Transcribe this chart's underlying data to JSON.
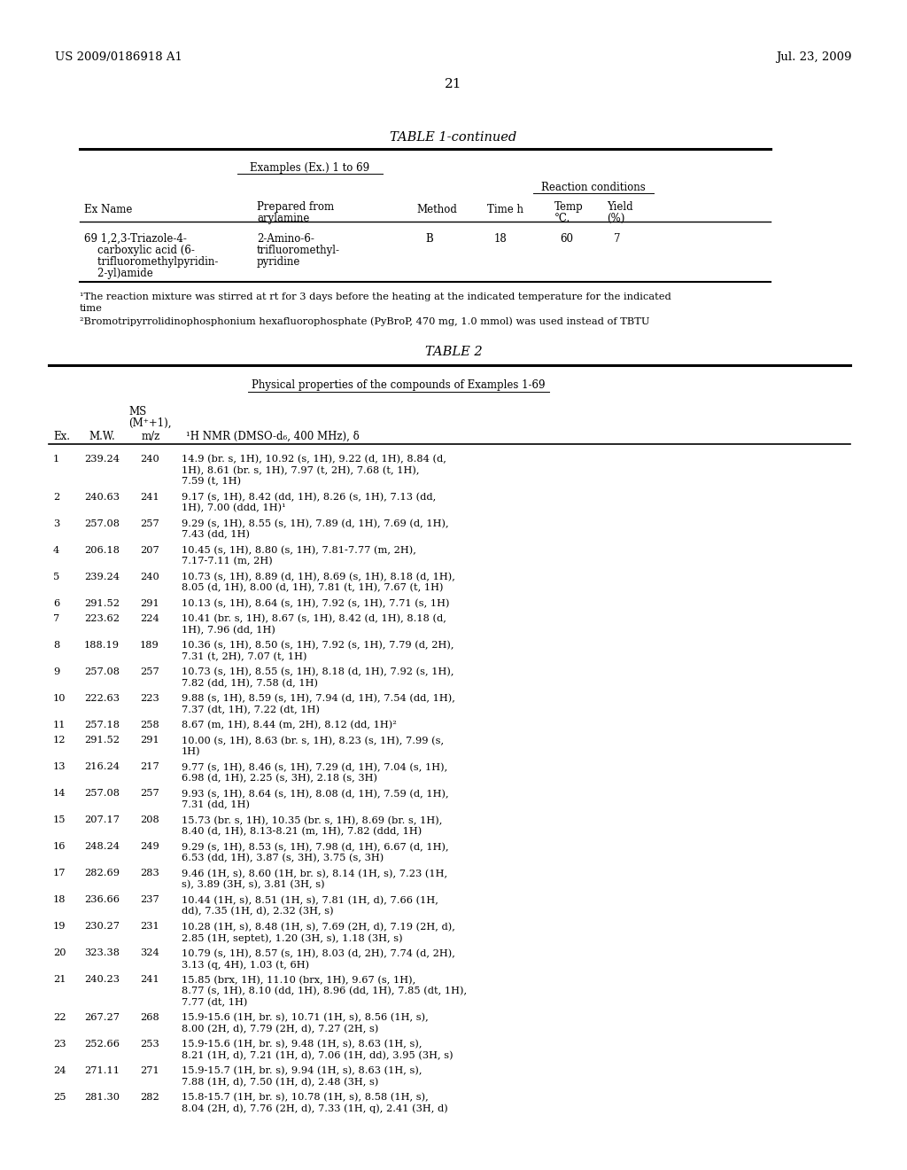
{
  "background_color": "#ffffff",
  "page_number": "21",
  "header_left": "US 2009/0186918 A1",
  "header_right": "Jul. 23, 2009",
  "table1_title": "TABLE 1-continued",
  "table1_subtitle": "Examples (Ex.) 1 to 69",
  "table1_subtitle2": "Reaction conditions",
  "footnote1": "¹The reaction mixture was stirred at rt for 3 days before the heating at the indicated temperature for the indicated",
  "footnote1b": "time",
  "footnote2": "²Bromotripyrrolidinophosphonium hexafluorophosphate (PyBroP, 470 mg, 1.0 mmol) was used instead of TBTU",
  "table2_title": "TABLE 2",
  "table2_subtitle": "Physical properties of the compounds of Examples 1-69",
  "table2_data": [
    [
      "1",
      "239.24",
      "240",
      "14.9 (br. s, 1H), 10.92 (s, 1H), 9.22 (d, 1H), 8.84 (d,\n1H), 8.61 (br. s, 1H), 7.97 (t, 2H), 7.68 (t, 1H),\n7.59 (t, 1H)"
    ],
    [
      "2",
      "240.63",
      "241",
      "9.17 (s, 1H), 8.42 (dd, 1H), 8.26 (s, 1H), 7.13 (dd,\n1H), 7.00 (ddd, 1H)¹"
    ],
    [
      "3",
      "257.08",
      "257",
      "9.29 (s, 1H), 8.55 (s, 1H), 7.89 (d, 1H), 7.69 (d, 1H),\n7.43 (dd, 1H)"
    ],
    [
      "4",
      "206.18",
      "207",
      "10.45 (s, 1H), 8.80 (s, 1H), 7.81-7.77 (m, 2H),\n7.17-7.11 (m, 2H)"
    ],
    [
      "5",
      "239.24",
      "240",
      "10.73 (s, 1H), 8.89 (d, 1H), 8.69 (s, 1H), 8.18 (d, 1H),\n8.05 (d, 1H), 8.00 (d, 1H), 7.81 (t, 1H), 7.67 (t, 1H)"
    ],
    [
      "6",
      "291.52",
      "291",
      "10.13 (s, 1H), 8.64 (s, 1H), 7.92 (s, 1H), 7.71 (s, 1H)"
    ],
    [
      "7",
      "223.62",
      "224",
      "10.41 (br. s, 1H), 8.67 (s, 1H), 8.42 (d, 1H), 8.18 (d,\n1H), 7.96 (dd, 1H)"
    ],
    [
      "8",
      "188.19",
      "189",
      "10.36 (s, 1H), 8.50 (s, 1H), 7.92 (s, 1H), 7.79 (d, 2H),\n7.31 (t, 2H), 7.07 (t, 1H)"
    ],
    [
      "9",
      "257.08",
      "257",
      "10.73 (s, 1H), 8.55 (s, 1H), 8.18 (d, 1H), 7.92 (s, 1H),\n7.82 (dd, 1H), 7.58 (d, 1H)"
    ],
    [
      "10",
      "222.63",
      "223",
      "9.88 (s, 1H), 8.59 (s, 1H), 7.94 (d, 1H), 7.54 (dd, 1H),\n7.37 (dt, 1H), 7.22 (dt, 1H)"
    ],
    [
      "11",
      "257.18",
      "258",
      "8.67 (m, 1H), 8.44 (m, 2H), 8.12 (dd, 1H)²"
    ],
    [
      "12",
      "291.52",
      "291",
      "10.00 (s, 1H), 8.63 (br. s, 1H), 8.23 (s, 1H), 7.99 (s,\n1H)"
    ],
    [
      "13",
      "216.24",
      "217",
      "9.77 (s, 1H), 8.46 (s, 1H), 7.29 (d, 1H), 7.04 (s, 1H),\n6.98 (d, 1H), 2.25 (s, 3H), 2.18 (s, 3H)"
    ],
    [
      "14",
      "257.08",
      "257",
      "9.93 (s, 1H), 8.64 (s, 1H), 8.08 (d, 1H), 7.59 (d, 1H),\n7.31 (dd, 1H)"
    ],
    [
      "15",
      "207.17",
      "208",
      "15.73 (br. s, 1H), 10.35 (br. s, 1H), 8.69 (br. s, 1H),\n8.40 (d, 1H), 8.13-8.21 (m, 1H), 7.82 (ddd, 1H)"
    ],
    [
      "16",
      "248.24",
      "249",
      "9.29 (s, 1H), 8.53 (s, 1H), 7.98 (d, 1H), 6.67 (d, 1H),\n6.53 (dd, 1H), 3.87 (s, 3H), 3.75 (s, 3H)"
    ],
    [
      "17",
      "282.69",
      "283",
      "9.46 (1H, s), 8.60 (1H, br. s), 8.14 (1H, s), 7.23 (1H,\ns), 3.89 (3H, s), 3.81 (3H, s)"
    ],
    [
      "18",
      "236.66",
      "237",
      "10.44 (1H, s), 8.51 (1H, s), 7.81 (1H, d), 7.66 (1H,\ndd), 7.35 (1H, d), 2.32 (3H, s)"
    ],
    [
      "19",
      "230.27",
      "231",
      "10.28 (1H, s), 8.48 (1H, s), 7.69 (2H, d), 7.19 (2H, d),\n2.85 (1H, septet), 1.20 (3H, s), 1.18 (3H, s)"
    ],
    [
      "20",
      "323.38",
      "324",
      "10.79 (s, 1H), 8.57 (s, 1H), 8.03 (d, 2H), 7.74 (d, 2H),\n3.13 (q, 4H), 1.03 (t, 6H)"
    ],
    [
      "21",
      "240.23",
      "241",
      "15.85 (brx, 1H), 11.10 (brx, 1H), 9.67 (s, 1H),\n8.77 (s, 1H), 8.10 (dd, 1H), 8.96 (dd, 1H), 7.85 (dt, 1H),\n7.77 (dt, 1H)"
    ],
    [
      "22",
      "267.27",
      "268",
      "15.9-15.6 (1H, br. s), 10.71 (1H, s), 8.56 (1H, s),\n8.00 (2H, d), 7.79 (2H, d), 7.27 (2H, s)"
    ],
    [
      "23",
      "252.66",
      "253",
      "15.9-15.6 (1H, br. s), 9.48 (1H, s), 8.63 (1H, s),\n8.21 (1H, d), 7.21 (1H, d), 7.06 (1H, dd), 3.95 (3H, s)"
    ],
    [
      "24",
      "271.11",
      "271",
      "15.9-15.7 (1H, br. s), 9.94 (1H, s), 8.63 (1H, s),\n7.88 (1H, d), 7.50 (1H, d), 2.48 (3H, s)"
    ],
    [
      "25",
      "281.30",
      "282",
      "15.8-15.7 (1H, br. s), 10.78 (1H, s), 8.58 (1H, s),\n8.04 (2H, d), 7.76 (2H, d), 7.33 (1H, q), 2.41 (3H, d)"
    ]
  ]
}
